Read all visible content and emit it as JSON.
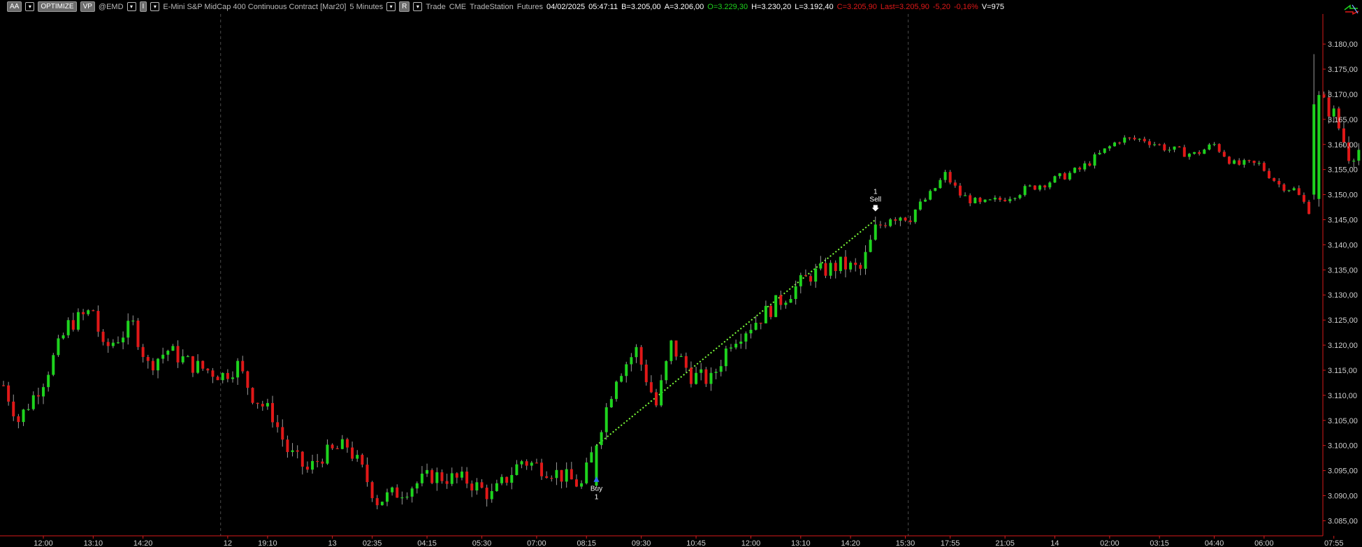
{
  "toolbar": {
    "aa_label": "AA",
    "optimize_label": "OPTIMIZE",
    "vp_label": "VP",
    "symbol": "@EMD",
    "i_label": "I",
    "description": "E-Mini S&P MidCap 400 Continuous Contract [Mar20]",
    "interval": "5 Minutes",
    "r_label": "R",
    "session": "Trade",
    "exchange": "CME",
    "datafeed": "TradeStation",
    "category": "Futures",
    "date": "04/02/2025",
    "time": "05:47:11",
    "bid": "B=3.205,00",
    "ask": "A=3.206,00",
    "open": "O=3.229,30",
    "high": "H=3.230,20",
    "low": "L=3.192,40",
    "close": "C=3.205,90",
    "last": "Last=3.205,90",
    "change": "-5,20",
    "change_pct": "-0,16%",
    "volume": "V=975"
  },
  "colors": {
    "up_bar": "#1ed31e",
    "down_bar": "#e01818",
    "axis": "#d61a1a",
    "trade_line": "#7cff3a",
    "buy_arrow": "#2f6bff"
  },
  "chart_data": {
    "type": "candlestick",
    "symbol": "@EMD",
    "interval": "5 Minutes",
    "ylim": [
      3082,
      3186
    ],
    "y_ticks": [
      "3.180,00",
      "3.175,00",
      "3.170,00",
      "3.165,00",
      "3.160,00",
      "3.155,00",
      "3.150,00",
      "3.145,00",
      "3.140,00",
      "3.135,00",
      "3.130,00",
      "3.125,00",
      "3.120,00",
      "3.115,00",
      "3.110,00",
      "3.105,00",
      "3.100,00",
      "3.095,00",
      "3.090,00",
      "3.085,00"
    ],
    "y_tick_values": [
      3180,
      3175,
      3170,
      3165,
      3160,
      3155,
      3150,
      3145,
      3140,
      3135,
      3130,
      3125,
      3120,
      3115,
      3110,
      3105,
      3100,
      3095,
      3090,
      3085
    ],
    "x_ticks": [
      "12:00",
      "13:10",
      "14:20",
      "12",
      "19:10",
      "13",
      "02:35",
      "04:15",
      "05:30",
      "07:00",
      "08:15",
      "09:30",
      "10:45",
      "12:00",
      "13:10",
      "14:20",
      "15:30",
      "17:55",
      "21:05",
      "14",
      "02:00",
      "03:15",
      "04:40",
      "06:00",
      "07:55"
    ],
    "x_tick_index": [
      8,
      18,
      28,
      45,
      53,
      66,
      74,
      85,
      96,
      107,
      117,
      128,
      139,
      150,
      160,
      170,
      181,
      190,
      201,
      211,
      222,
      232,
      243,
      253,
      267
    ],
    "session_breaks": [
      44,
      182
    ],
    "n_bars": 276,
    "waypoints": [
      [
        0,
        3112
      ],
      [
        3,
        3105
      ],
      [
        8,
        3113
      ],
      [
        13,
        3124
      ],
      [
        18,
        3127
      ],
      [
        20,
        3119
      ],
      [
        26,
        3124
      ],
      [
        29,
        3116
      ],
      [
        33,
        3119
      ],
      [
        38,
        3116
      ],
      [
        44,
        3114
      ],
      [
        47,
        3116
      ],
      [
        50,
        3110
      ],
      [
        54,
        3106
      ],
      [
        57,
        3099
      ],
      [
        61,
        3095
      ],
      [
        64,
        3098
      ],
      [
        69,
        3100
      ],
      [
        72,
        3095
      ],
      [
        75,
        3089
      ],
      [
        80,
        3091
      ],
      [
        86,
        3094
      ],
      [
        93,
        3093
      ],
      [
        98,
        3090
      ],
      [
        104,
        3097
      ],
      [
        110,
        3095
      ],
      [
        116,
        3092
      ],
      [
        119,
        3101
      ],
      [
        123,
        3114
      ],
      [
        127,
        3119
      ],
      [
        131,
        3108
      ],
      [
        134,
        3120
      ],
      [
        138,
        3114
      ],
      [
        142,
        3113
      ],
      [
        146,
        3121
      ],
      [
        150,
        3124
      ],
      [
        156,
        3129
      ],
      [
        162,
        3134
      ],
      [
        168,
        3136
      ],
      [
        172,
        3135
      ],
      [
        175,
        3143
      ],
      [
        178,
        3146
      ],
      [
        182,
        3146
      ],
      [
        186,
        3150
      ],
      [
        189,
        3154
      ],
      [
        192,
        3150
      ],
      [
        196,
        3148
      ],
      [
        200,
        3149
      ],
      [
        205,
        3151
      ],
      [
        211,
        3153
      ],
      [
        216,
        3155
      ],
      [
        220,
        3158
      ],
      [
        224,
        3161
      ],
      [
        229,
        3161
      ],
      [
        234,
        3159
      ],
      [
        239,
        3158
      ],
      [
        243,
        3160
      ],
      [
        247,
        3156
      ],
      [
        252,
        3156
      ],
      [
        256,
        3152
      ],
      [
        259,
        3151
      ],
      [
        262,
        3147
      ],
      [
        263,
        3150
      ],
      [
        264,
        3169
      ],
      [
        267,
        3166
      ],
      [
        270,
        3158
      ],
      [
        272,
        3159
      ],
      [
        275,
        3174
      ],
      [
        280,
        3170
      ],
      [
        282,
        3176
      ]
    ],
    "trades": [
      {
        "side": "Buy",
        "quantity": "1",
        "bar": 119,
        "price": 3100
      },
      {
        "side": "Sell",
        "quantity": "1",
        "bar": 175,
        "price": 3145
      }
    ]
  }
}
